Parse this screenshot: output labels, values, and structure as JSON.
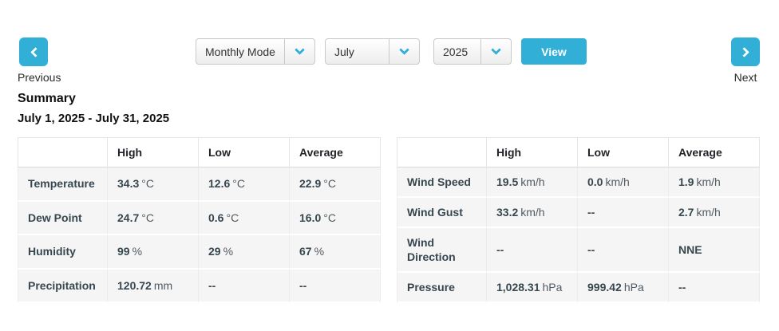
{
  "accent_color": "#31afd6",
  "toolbar": {
    "previous_label": "Previous",
    "next_label": "Next",
    "mode_select_value": "Monthly Mode",
    "month_select_value": "July",
    "year_select_value": "2025",
    "view_label": "View"
  },
  "summary": {
    "title": "Summary",
    "date_range": "July 1, 2025 - July 31, 2025"
  },
  "tables": [
    {
      "headers": [
        "",
        "High",
        "Low",
        "Average"
      ],
      "rows": [
        {
          "label": "Temperature",
          "high": {
            "num": "34.3",
            "unit": "°C"
          },
          "low": {
            "num": "12.6",
            "unit": "°C"
          },
          "avg": {
            "num": "22.9",
            "unit": "°C"
          }
        },
        {
          "label": "Dew Point",
          "high": {
            "num": "24.7",
            "unit": "°C"
          },
          "low": {
            "num": "0.6",
            "unit": "°C"
          },
          "avg": {
            "num": "16.0",
            "unit": "°C"
          }
        },
        {
          "label": "Humidity",
          "high": {
            "num": "99",
            "unit": "%"
          },
          "low": {
            "num": "29",
            "unit": "%"
          },
          "avg": {
            "num": "67",
            "unit": "%"
          }
        },
        {
          "label": "Precipitation",
          "high": {
            "num": "120.72",
            "unit": "mm"
          },
          "low": {
            "num": "--",
            "unit": ""
          },
          "avg": {
            "num": "--",
            "unit": ""
          }
        }
      ]
    },
    {
      "headers": [
        "",
        "High",
        "Low",
        "Average"
      ],
      "rows": [
        {
          "label": "Wind Speed",
          "high": {
            "num": "19.5",
            "unit": "km/h"
          },
          "low": {
            "num": "0.0",
            "unit": "km/h"
          },
          "avg": {
            "num": "1.9",
            "unit": "km/h"
          }
        },
        {
          "label": "Wind Gust",
          "high": {
            "num": "33.2",
            "unit": "km/h"
          },
          "low": {
            "num": "--",
            "unit": ""
          },
          "avg": {
            "num": "2.7",
            "unit": "km/h"
          }
        },
        {
          "label": "Wind Direction",
          "high": {
            "num": "--",
            "unit": ""
          },
          "low": {
            "num": "--",
            "unit": ""
          },
          "avg": {
            "num": "NNE",
            "unit": ""
          }
        },
        {
          "label": "Pressure",
          "high": {
            "num": "1,028.31",
            "unit": "hPa"
          },
          "low": {
            "num": "999.42",
            "unit": "hPa"
          },
          "avg": {
            "num": "--",
            "unit": ""
          }
        }
      ]
    }
  ]
}
